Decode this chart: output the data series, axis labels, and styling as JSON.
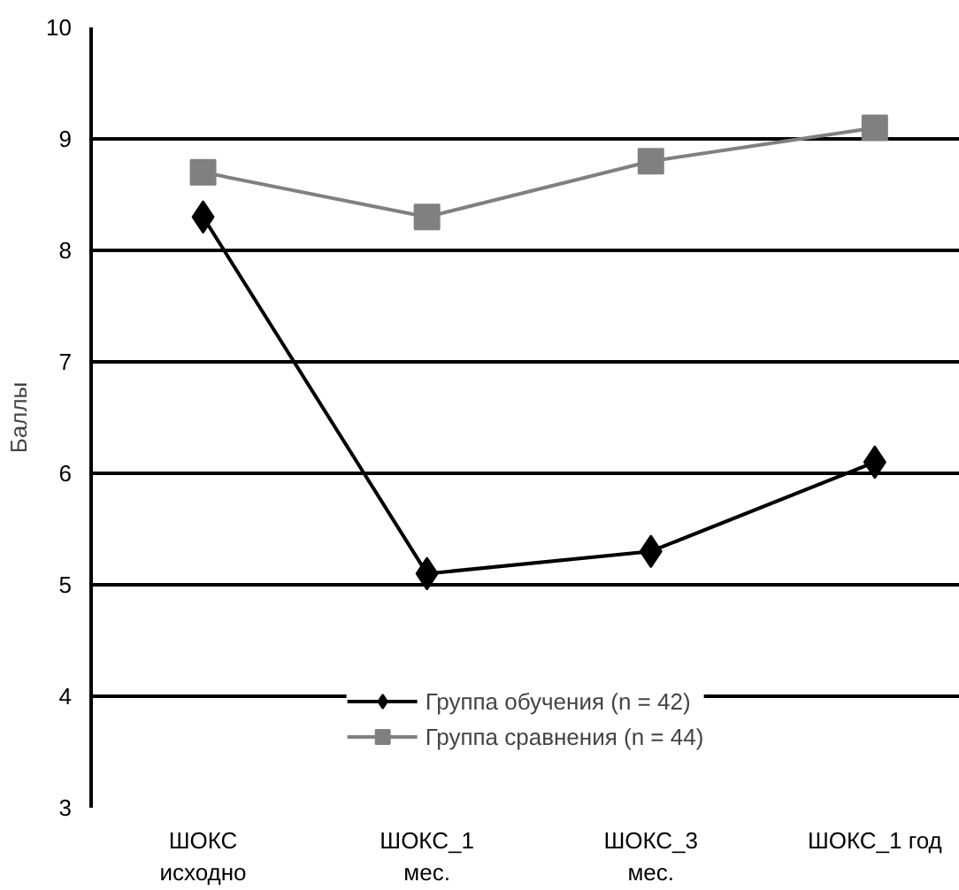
{
  "chart_data": {
    "type": "line",
    "ylabel": "Баллы",
    "categories": [
      "ШОКС\nисходно",
      "ШОКС_1\nмес.",
      "ШОКС_3\nмес.",
      "ШОКС_1 год"
    ],
    "series": [
      {
        "name": "Группа обучения (n = 42)",
        "color": "#000000",
        "marker": "diamond",
        "values": [
          8.3,
          5.1,
          5.3,
          6.1
        ]
      },
      {
        "name": "Группа сравнения (n = 44)",
        "color": "#808080",
        "marker": "square",
        "values": [
          8.7,
          8.3,
          8.8,
          9.1
        ]
      }
    ],
    "ylim": [
      3,
      10
    ],
    "yticks": [
      3,
      4,
      5,
      6,
      7,
      8,
      9,
      10
    ],
    "grid": "y",
    "legend": "bottom"
  }
}
